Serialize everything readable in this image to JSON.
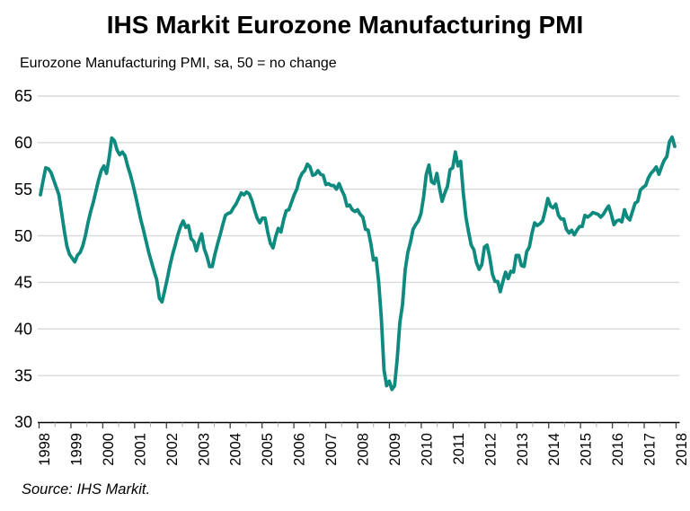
{
  "header": {
    "title": "IHS Markit Eurozone Manufacturing PMI",
    "subtitle": "Eurozone Manufacturing PMI, sa, 50 = no change"
  },
  "footer": {
    "source": "Source: IHS Markit."
  },
  "colors": {
    "line": "#0F8A7F",
    "gridline": "#D9D9D9",
    "axis": "#000000",
    "major_tick": "#404040",
    "minor_tick": "#ABABAB",
    "text": "#000000",
    "background": "#FFFFFF"
  },
  "chart_data": {
    "type": "line",
    "title": "IHS Markit Eurozone Manufacturing PMI",
    "subtitle": "Eurozone Manufacturing PMI, sa, 50 = no change",
    "source": "Source: IHS Markit.",
    "legend": false,
    "grid": "horizontal",
    "x_axis": {
      "tick_labels": [
        "1998",
        "1999",
        "2000",
        "2001",
        "2002",
        "2003",
        "2004",
        "2005",
        "2006",
        "2007",
        "2008",
        "2009",
        "2010",
        "2011",
        "2012",
        "2013",
        "2014",
        "2015",
        "2016",
        "2017",
        "2018"
      ],
      "label_rotation_deg": -90,
      "unit": "year",
      "minor_ticks": "half-year"
    },
    "y_axis": {
      "ticks": [
        30,
        35,
        40,
        45,
        50,
        55,
        60,
        65
      ],
      "range": [
        30,
        65
      ],
      "reference_level_note": "50 = no change"
    },
    "series": [
      {
        "name": "Eurozone Manufacturing PMI (sa)",
        "color": "#0F8A7F",
        "frequency": "monthly",
        "start": "1998-01",
        "end": "2018-01",
        "values": [
          54.4,
          55.9,
          57.3,
          57.2,
          56.8,
          56.0,
          55.2,
          54.4,
          52.5,
          50.6,
          48.9,
          48.0,
          47.6,
          47.2,
          47.9,
          48.2,
          48.9,
          50.0,
          51.4,
          52.6,
          53.6,
          54.8,
          56.0,
          57.0,
          57.5,
          56.7,
          58.4,
          60.5,
          60.2,
          59.2,
          58.7,
          59.0,
          58.6,
          57.5,
          56.6,
          55.5,
          54.3,
          53.0,
          51.7,
          50.6,
          49.4,
          48.2,
          47.2,
          46.2,
          45.3,
          43.3,
          42.9,
          44.1,
          45.4,
          46.8,
          48.0,
          49.0,
          50.1,
          51.0,
          51.6,
          50.9,
          51.1,
          49.7,
          49.4,
          48.4,
          49.4,
          50.2,
          48.6,
          47.8,
          46.7,
          46.7,
          48.0,
          49.1,
          50.1,
          51.2,
          52.2,
          52.4,
          52.5,
          53.0,
          53.4,
          54.0,
          54.6,
          54.4,
          54.7,
          54.5,
          53.8,
          52.8,
          51.9,
          51.4,
          51.9,
          51.9,
          50.4,
          49.2,
          48.7,
          49.9,
          50.8,
          50.4,
          51.7,
          52.7,
          52.8,
          53.6,
          54.4,
          55.0,
          56.1,
          56.7,
          57.0,
          57.7,
          57.4,
          56.5,
          56.6,
          57.0,
          56.6,
          56.5,
          55.5,
          55.6,
          55.4,
          55.4,
          55.0,
          55.6,
          54.9,
          54.3,
          53.2,
          53.3,
          52.8,
          52.6,
          52.8,
          52.3,
          52.0,
          50.7,
          50.6,
          49.2,
          47.4,
          47.6,
          45.0,
          41.1,
          35.6,
          33.9,
          34.4,
          33.5,
          33.9,
          36.8,
          40.7,
          42.6,
          46.3,
          48.2,
          49.3,
          50.7,
          51.2,
          51.6,
          52.4,
          54.2,
          56.6,
          57.6,
          55.8,
          55.6,
          56.7,
          55.1,
          53.7,
          54.6,
          55.3,
          57.1,
          57.3,
          59.0,
          57.5,
          58.0,
          54.6,
          52.0,
          50.4,
          49.0,
          48.5,
          47.1,
          46.4,
          46.9,
          48.8,
          49.0,
          47.7,
          45.9,
          45.1,
          45.1,
          44.0,
          45.1,
          46.1,
          45.4,
          46.2,
          46.1,
          47.9,
          47.9,
          46.8,
          46.7,
          48.3,
          48.8,
          50.3,
          51.4,
          51.1,
          51.3,
          51.6,
          52.7,
          54.0,
          53.2,
          53.0,
          53.4,
          52.2,
          51.8,
          51.8,
          50.7,
          50.3,
          50.6,
          50.1,
          50.6,
          51.0,
          51.0,
          52.2,
          52.0,
          52.2,
          52.5,
          52.4,
          52.3,
          52.0,
          52.3,
          52.8,
          53.2,
          52.3,
          51.2,
          51.6,
          51.7,
          51.5,
          52.8,
          52.0,
          51.7,
          52.6,
          53.5,
          53.7,
          54.9,
          55.2,
          55.4,
          56.2,
          56.7,
          57.0,
          57.4,
          56.6,
          57.4,
          58.1,
          58.5,
          60.1,
          60.6,
          59.6
        ]
      }
    ]
  }
}
